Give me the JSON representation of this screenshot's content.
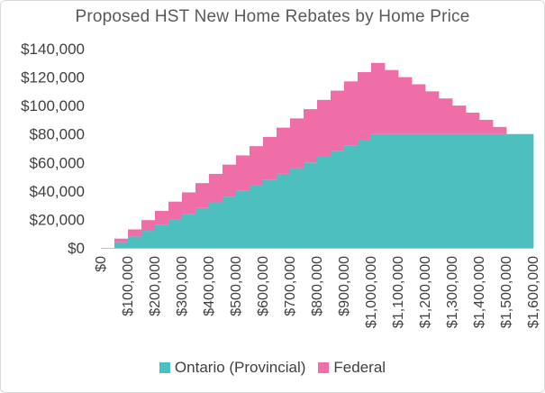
{
  "chart_data": {
    "type": "area",
    "title": "Proposed HST New Home Rebates by Home Price",
    "xlabel": "",
    "ylabel": "",
    "x_step": 50000,
    "x": [
      0,
      50000,
      100000,
      150000,
      200000,
      250000,
      300000,
      350000,
      400000,
      450000,
      500000,
      550000,
      600000,
      650000,
      700000,
      750000,
      800000,
      850000,
      900000,
      950000,
      1000000,
      1050000,
      1100000,
      1150000,
      1200000,
      1250000,
      1300000,
      1350000,
      1400000,
      1450000,
      1500000,
      1550000,
      1600000
    ],
    "series": [
      {
        "name": "Ontario (Provincial)",
        "color": "#4dbfbf",
        "values": [
          0,
          4000,
          8000,
          12000,
          16000,
          20000,
          24000,
          28000,
          32000,
          36000,
          40000,
          44000,
          48000,
          52000,
          56000,
          60000,
          64000,
          68000,
          72000,
          76000,
          80000,
          80000,
          80000,
          80000,
          80000,
          80000,
          80000,
          80000,
          80000,
          80000,
          80000,
          80000,
          80000
        ]
      },
      {
        "name": "Federal",
        "color": "#f06ea8",
        "values": [
          0,
          2500,
          5000,
          7500,
          10000,
          12500,
          15000,
          17500,
          20000,
          22500,
          25000,
          27500,
          30000,
          32500,
          35000,
          37500,
          40000,
          42500,
          45000,
          47500,
          50000,
          45000,
          40000,
          35000,
          30000,
          25000,
          20000,
          15000,
          10000,
          5000,
          0,
          0,
          0
        ]
      }
    ],
    "ylim": [
      0,
      140000
    ],
    "y_ticks": [
      0,
      20000,
      40000,
      60000,
      80000,
      100000,
      120000,
      140000
    ],
    "y_tick_labels": [
      "$0",
      "$20,000",
      "$40,000",
      "$60,000",
      "$80,000",
      "$100,000",
      "$120,000",
      "$140,000"
    ],
    "x_tick_values": [
      0,
      100000,
      200000,
      300000,
      400000,
      500000,
      600000,
      700000,
      800000,
      900000,
      1000000,
      1100000,
      1200000,
      1300000,
      1400000,
      1500000,
      1600000
    ],
    "x_tick_labels": [
      "$0",
      "$100,000",
      "$200,000",
      "$300,000",
      "$400,000",
      "$500,000",
      "$600,000",
      "$700,000",
      "$800,000",
      "$900,000",
      "$1,000,000",
      "$1,100,000",
      "$1,200,000",
      "$1,300,000",
      "$1,400,000",
      "$1,500,000",
      "$1,600,000"
    ],
    "legend_position": "bottom",
    "stacked": true
  }
}
